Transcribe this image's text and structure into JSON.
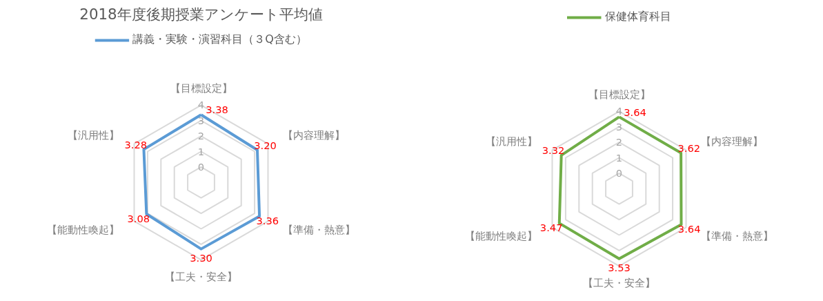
{
  "chart_data": [
    {
      "type": "radar",
      "title": "2018年度後期授業アンケート平均値",
      "categories": [
        "【目標設定】",
        "【内容理解】",
        "【準備・熱意】",
        "【工夫・安全】",
        "【能動性喚起】",
        "【汎用性】"
      ],
      "series": [
        {
          "name": "講義・実験・演習科目（３Q含む）",
          "color": "#5b9bd5",
          "values": [
            3.38,
            3.2,
            3.36,
            3.3,
            3.08,
            3.28
          ],
          "value_labels": [
            "3.38",
            "3.20",
            "3.36",
            "3.30",
            "3.08",
            "3.28"
          ]
        }
      ],
      "ylim": [
        -1,
        4
      ],
      "yticks": [
        0,
        1,
        2,
        3,
        4
      ],
      "grid": true,
      "legend": "top"
    },
    {
      "type": "radar",
      "categories": [
        "【目標設定】",
        "【内容理解】",
        "【準備・熱意】",
        "【工夫・安全】",
        "【能動性喚起】",
        "【汎用性】"
      ],
      "series": [
        {
          "name": "保健体育科目",
          "color": "#70ad47",
          "values": [
            3.64,
            3.62,
            3.64,
            3.53,
            3.47,
            3.32
          ],
          "value_labels": [
            "3.64",
            "3.62",
            "3.64",
            "3.53",
            "3.47",
            "3.32"
          ]
        }
      ],
      "ylim": [
        -1,
        4
      ],
      "yticks": [
        0,
        1,
        2,
        3,
        4
      ],
      "grid": true,
      "legend": "top"
    }
  ]
}
